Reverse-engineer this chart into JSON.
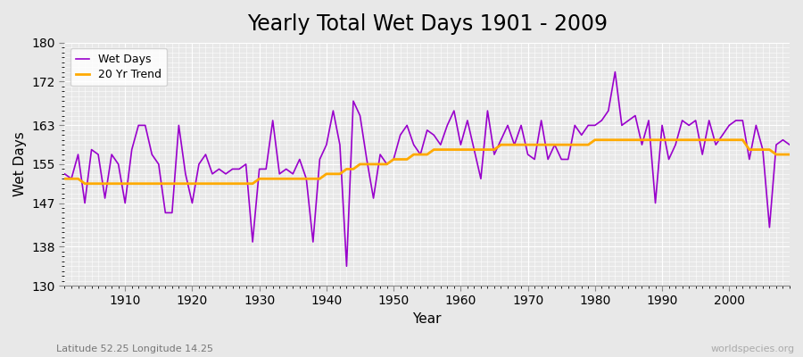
{
  "title": "Yearly Total Wet Days 1901 - 2009",
  "xlabel": "Year",
  "ylabel": "Wet Days",
  "xlim": [
    1901,
    2009
  ],
  "ylim": [
    130,
    180
  ],
  "yticks": [
    130,
    138,
    147,
    155,
    163,
    172,
    180
  ],
  "xticks": [
    1910,
    1920,
    1930,
    1940,
    1950,
    1960,
    1970,
    1980,
    1990,
    2000
  ],
  "background_color": "#e8e8e8",
  "plot_bg_color": "#e8e8e8",
  "wet_days_color": "#9900cc",
  "trend_color": "#ffaa00",
  "title_fontsize": 17,
  "axis_label_fontsize": 11,
  "tick_fontsize": 10,
  "legend_labels": [
    "Wet Days",
    "20 Yr Trend"
  ],
  "subtitle": "Latitude 52.25 Longitude 14.25",
  "watermark": "worldspecies.org",
  "years": [
    1901,
    1902,
    1903,
    1904,
    1905,
    1906,
    1907,
    1908,
    1909,
    1910,
    1911,
    1912,
    1913,
    1914,
    1915,
    1916,
    1917,
    1918,
    1919,
    1920,
    1921,
    1922,
    1923,
    1924,
    1925,
    1926,
    1927,
    1928,
    1929,
    1930,
    1931,
    1932,
    1933,
    1934,
    1935,
    1936,
    1937,
    1938,
    1939,
    1940,
    1941,
    1942,
    1943,
    1944,
    1945,
    1946,
    1947,
    1948,
    1949,
    1950,
    1951,
    1952,
    1953,
    1954,
    1955,
    1956,
    1957,
    1958,
    1959,
    1960,
    1961,
    1962,
    1963,
    1964,
    1965,
    1966,
    1967,
    1968,
    1969,
    1970,
    1971,
    1972,
    1973,
    1974,
    1975,
    1976,
    1977,
    1978,
    1979,
    1980,
    1981,
    1982,
    1983,
    1984,
    1985,
    1986,
    1987,
    1988,
    1989,
    1990,
    1991,
    1992,
    1993,
    1994,
    1995,
    1996,
    1997,
    1998,
    1999,
    2000,
    2001,
    2002,
    2003,
    2004,
    2005,
    2006,
    2007,
    2008,
    2009
  ],
  "wet_days": [
    153,
    152,
    157,
    147,
    158,
    157,
    148,
    157,
    155,
    147,
    158,
    163,
    163,
    157,
    155,
    145,
    145,
    163,
    153,
    147,
    155,
    157,
    153,
    154,
    153,
    154,
    154,
    155,
    139,
    154,
    154,
    164,
    153,
    154,
    153,
    156,
    152,
    139,
    156,
    159,
    166,
    159,
    134,
    168,
    165,
    156,
    148,
    157,
    155,
    156,
    161,
    163,
    159,
    157,
    162,
    161,
    159,
    163,
    166,
    159,
    164,
    158,
    152,
    166,
    157,
    160,
    163,
    159,
    163,
    157,
    156,
    164,
    156,
    159,
    156,
    156,
    163,
    161,
    163,
    163,
    164,
    166,
    174,
    163,
    164,
    165,
    159,
    164,
    147,
    163,
    156,
    159,
    164,
    163,
    164,
    157,
    164,
    159,
    161,
    163,
    164,
    164,
    156,
    163,
    158,
    142,
    159,
    160,
    159
  ],
  "trend": [
    152,
    152,
    152,
    151,
    151,
    151,
    151,
    151,
    151,
    151,
    151,
    151,
    151,
    151,
    151,
    151,
    151,
    151,
    151,
    151,
    151,
    151,
    151,
    151,
    151,
    151,
    151,
    151,
    151,
    152,
    152,
    152,
    152,
    152,
    152,
    152,
    152,
    152,
    152,
    153,
    153,
    153,
    154,
    154,
    155,
    155,
    155,
    155,
    155,
    156,
    156,
    156,
    157,
    157,
    157,
    158,
    158,
    158,
    158,
    158,
    158,
    158,
    158,
    158,
    158,
    159,
    159,
    159,
    159,
    159,
    159,
    159,
    159,
    159,
    159,
    159,
    159,
    159,
    159,
    160,
    160,
    160,
    160,
    160,
    160,
    160,
    160,
    160,
    160,
    160,
    160,
    160,
    160,
    160,
    160,
    160,
    160,
    160,
    160,
    160,
    160,
    160,
    158,
    158,
    158,
    158,
    157,
    157,
    157
  ]
}
